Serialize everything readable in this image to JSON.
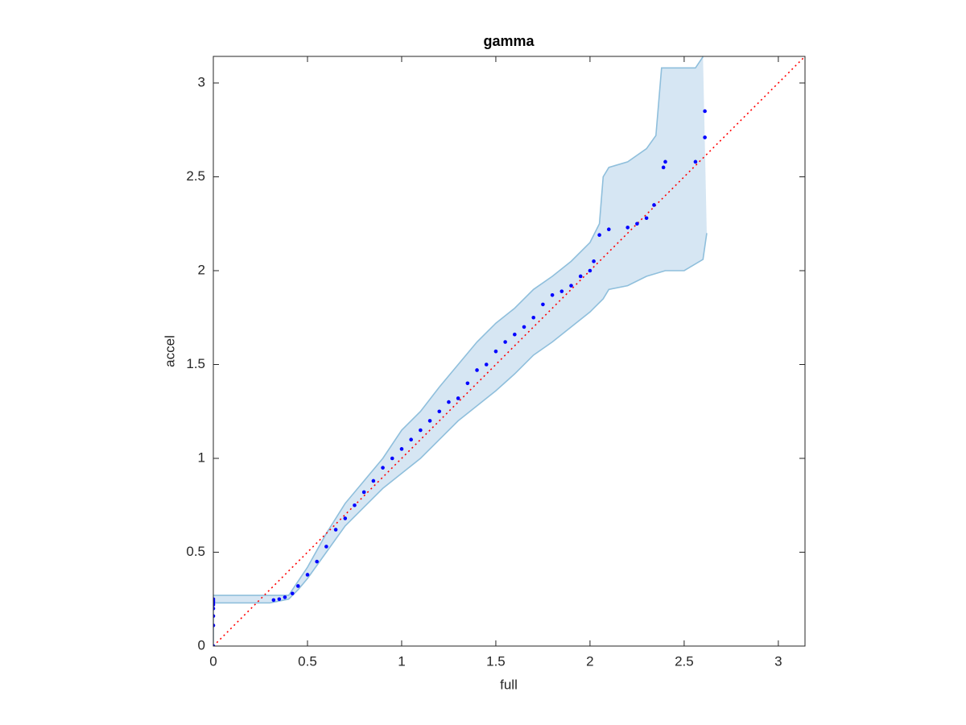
{
  "chart_data": {
    "type": "scatter",
    "title": "gamma",
    "xlabel": "full",
    "ylabel": "accel",
    "xlim": [
      0,
      3.1416
    ],
    "ylim": [
      0,
      3.1416
    ],
    "xticks": [
      0,
      0.5,
      1,
      1.5,
      2,
      2.5,
      3
    ],
    "yticks": [
      0,
      0.5,
      1,
      1.5,
      2,
      2.5,
      3
    ],
    "points": {
      "color": "#0000ff",
      "x": [
        0,
        0,
        0,
        0,
        0,
        0,
        0,
        0,
        0.32,
        0.35,
        0.38,
        0.42,
        0.45,
        0.5,
        0.55,
        0.6,
        0.65,
        0.7,
        0.75,
        0.8,
        0.85,
        0.9,
        0.95,
        1.0,
        1.05,
        1.1,
        1.15,
        1.2,
        1.25,
        1.3,
        1.35,
        1.4,
        1.45,
        1.5,
        1.55,
        1.6,
        1.65,
        1.7,
        1.75,
        1.8,
        1.85,
        1.9,
        1.95,
        2.0,
        2.02,
        2.05,
        2.1,
        2.2,
        2.25,
        2.3,
        2.34,
        2.39,
        2.4,
        2.56,
        2.61,
        2.61
      ],
      "y": [
        0,
        0.11,
        0.16,
        0.2,
        0.22,
        0.23,
        0.24,
        0.25,
        0.245,
        0.25,
        0.26,
        0.28,
        0.32,
        0.38,
        0.45,
        0.53,
        0.62,
        0.68,
        0.75,
        0.82,
        0.88,
        0.95,
        1.0,
        1.05,
        1.1,
        1.15,
        1.2,
        1.25,
        1.3,
        1.32,
        1.4,
        1.47,
        1.5,
        1.57,
        1.62,
        1.66,
        1.7,
        1.75,
        1.82,
        1.87,
        1.89,
        1.92,
        1.97,
        2.0,
        2.05,
        2.19,
        2.22,
        2.23,
        2.25,
        2.28,
        2.35,
        2.55,
        2.58,
        2.58,
        2.71,
        2.85
      ]
    },
    "band": {
      "fill": "#d6e6f3",
      "stroke": "#8fbfdc",
      "upper": {
        "x": [
          0,
          0.4,
          0.5,
          0.6,
          0.7,
          0.8,
          0.9,
          1.0,
          1.1,
          1.2,
          1.3,
          1.4,
          1.5,
          1.6,
          1.7,
          1.8,
          1.9,
          2.0,
          2.05,
          2.07,
          2.1,
          2.2,
          2.3,
          2.35,
          2.38,
          2.5,
          2.56,
          2.6
        ],
        "y": [
          0.27,
          0.27,
          0.42,
          0.6,
          0.76,
          0.88,
          1.0,
          1.15,
          1.25,
          1.38,
          1.5,
          1.62,
          1.72,
          1.8,
          1.9,
          1.97,
          2.05,
          2.15,
          2.25,
          2.5,
          2.55,
          2.58,
          2.65,
          2.72,
          3.08,
          3.08,
          3.08,
          3.14
        ]
      },
      "lower": {
        "x": [
          0,
          0,
          0.3,
          0.4,
          0.45,
          0.5,
          0.6,
          0.7,
          0.8,
          0.9,
          1.0,
          1.1,
          1.2,
          1.3,
          1.4,
          1.5,
          1.6,
          1.7,
          1.8,
          1.9,
          2.0,
          2.07,
          2.1,
          2.2,
          2.3,
          2.4,
          2.5,
          2.6,
          2.62
        ],
        "y": [
          0,
          0.23,
          0.23,
          0.25,
          0.3,
          0.36,
          0.5,
          0.64,
          0.74,
          0.84,
          0.92,
          1.0,
          1.1,
          1.2,
          1.28,
          1.36,
          1.45,
          1.55,
          1.62,
          1.7,
          1.78,
          1.85,
          1.9,
          1.92,
          1.97,
          2.0,
          2.0,
          2.06,
          2.2
        ]
      }
    },
    "reference_line": {
      "color": "#ff0000",
      "x": [
        0,
        3.1416
      ],
      "y": [
        0,
        3.1416
      ]
    }
  }
}
